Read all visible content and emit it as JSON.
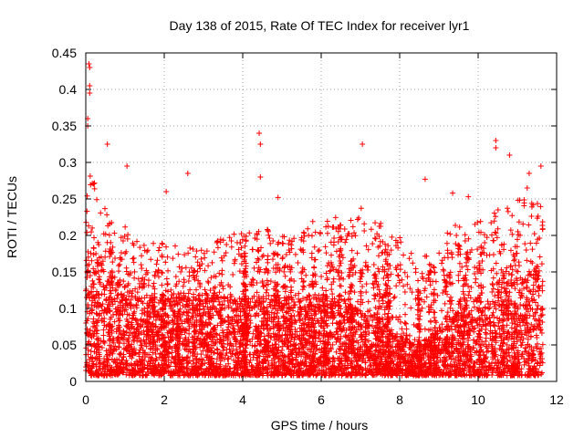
{
  "chart_data": {
    "type": "scatter",
    "title": "Day 138 of 2015, Rate Of TEC Index for receiver lyr1",
    "xlabel": "GPS time / hours",
    "ylabel": "ROTI / TECUs",
    "xlim": [
      0,
      12
    ],
    "ylim": [
      0,
      0.45
    ],
    "xticks": [
      "0",
      "2",
      "4",
      "6",
      "8",
      "10",
      "12"
    ],
    "yticks": [
      "0",
      "0.05",
      "0.1",
      "0.15",
      "0.2",
      "0.25",
      "0.3",
      "0.35",
      "0.4",
      "0.45"
    ],
    "grid": true,
    "marker": "+",
    "color": "#ff0000",
    "data_extent_hours": [
      0,
      11.65
    ],
    "notable_points": [
      {
        "x": 0.08,
        "y": 0.435
      },
      {
        "x": 0.1,
        "y": 0.43
      },
      {
        "x": 0.1,
        "y": 0.405
      },
      {
        "x": 0.1,
        "y": 0.395
      },
      {
        "x": 0.05,
        "y": 0.36
      },
      {
        "x": 0.05,
        "y": 0.35
      },
      {
        "x": 0.55,
        "y": 0.325
      },
      {
        "x": 4.42,
        "y": 0.34
      },
      {
        "x": 4.45,
        "y": 0.325
      },
      {
        "x": 4.45,
        "y": 0.28
      },
      {
        "x": 7.05,
        "y": 0.325
      },
      {
        "x": 10.45,
        "y": 0.33
      },
      {
        "x": 10.45,
        "y": 0.32
      },
      {
        "x": 10.8,
        "y": 0.31
      },
      {
        "x": 1.05,
        "y": 0.295
      },
      {
        "x": 2.6,
        "y": 0.285
      },
      {
        "x": 11.6,
        "y": 0.295
      },
      {
        "x": 8.65,
        "y": 0.277
      },
      {
        "x": 11.3,
        "y": 0.285
      },
      {
        "x": 11.25,
        "y": 0.265
      },
      {
        "x": 2.05,
        "y": 0.26
      },
      {
        "x": 4.9,
        "y": 0.252
      },
      {
        "x": 9.35,
        "y": 0.258
      },
      {
        "x": 9.75,
        "y": 0.253
      }
    ],
    "density_profile": {
      "x": [
        0,
        0.25,
        0.5,
        0.75,
        1,
        1.5,
        2,
        2.5,
        3,
        3.5,
        4,
        4.5,
        5,
        5.5,
        6,
        6.5,
        7,
        7.5,
        8,
        8.5,
        9,
        9.5,
        10,
        10.5,
        11,
        11.5
      ],
      "upper_envelope": [
        0.3,
        0.27,
        0.24,
        0.2,
        0.22,
        0.19,
        0.2,
        0.19,
        0.18,
        0.2,
        0.21,
        0.2,
        0.21,
        0.22,
        0.22,
        0.23,
        0.24,
        0.22,
        0.2,
        0.16,
        0.2,
        0.22,
        0.22,
        0.24,
        0.25,
        0.25
      ],
      "typical_value": [
        0.09,
        0.08,
        0.07,
        0.06,
        0.06,
        0.05,
        0.05,
        0.05,
        0.05,
        0.05,
        0.05,
        0.05,
        0.05,
        0.05,
        0.05,
        0.05,
        0.04,
        0.035,
        0.025,
        0.02,
        0.03,
        0.04,
        0.05,
        0.06,
        0.06,
        0.07
      ]
    }
  }
}
